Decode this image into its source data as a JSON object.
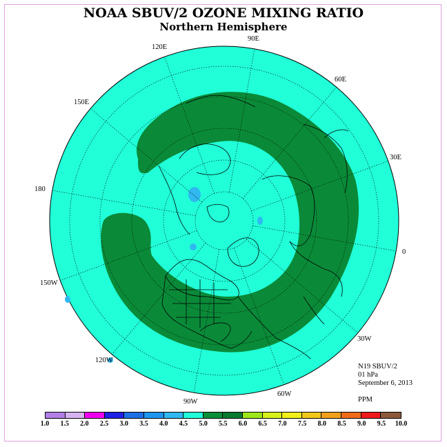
{
  "title": "NOAA SBUV/2 OZONE MIXING RATIO",
  "subtitle": "Northern Hemisphere",
  "longitude_labels": {
    "lon_90E": "90E",
    "lon_60E": "60E",
    "lon_30E": "30E",
    "lon_0": "0",
    "lon_30W": "30W",
    "lon_60W": "60W",
    "lon_90W": "90W",
    "lon_120W": "120W",
    "lon_150W": "150W",
    "lon_180": "180",
    "lon_150E": "150E",
    "lon_120E": "120E"
  },
  "info": {
    "instrument": "N19 SBUV/2",
    "pressure": "01 hPa",
    "date": "September 6, 2013",
    "units": "PPM"
  },
  "colorbar": {
    "labels": [
      "1.0",
      "1.5",
      "2.0",
      "2.5",
      "3.0",
      "3.5",
      "4.0",
      "4.5",
      "5.0",
      "5.5",
      "6.0",
      "6.5",
      "7.0",
      "7.5",
      "8.0",
      "8.5",
      "9.0",
      "9.5",
      "10.0"
    ],
    "colors": [
      "#b27fe6",
      "#d6b3f0",
      "#f000f0",
      "#1f1fe6",
      "#1e6fe6",
      "#1e96f0",
      "#30b8f0",
      "#20ffd8",
      "#0a8f3a",
      "#087a30",
      "#9ee61a",
      "#d6f01a",
      "#f0f01a",
      "#f0c81a",
      "#f0a01a",
      "#f06a1a",
      "#f01a1a",
      "#8a5a3a"
    ]
  },
  "map_colors": {
    "background": "#20ffd8",
    "band": "#0a8a38",
    "low_spot": "#30b8f0"
  }
}
